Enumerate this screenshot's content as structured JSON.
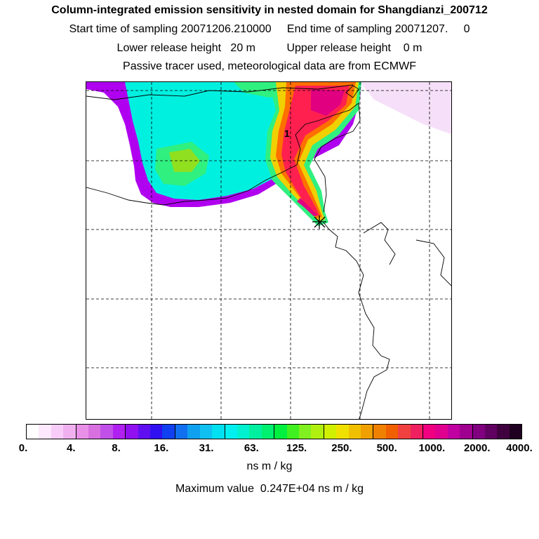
{
  "header": {
    "title": "Column-integrated emission sensitivity in nested domain for Shangdianzi_200712",
    "sampling_line": "Start time of sampling 20071206.210000     End time of sampling 20071207.     0",
    "release_line": "Lower release height   20 m          Upper release height    0 m",
    "tracer_line": "Passive tracer used, meteorological data are from ECMWF"
  },
  "map": {
    "marker_label": "1",
    "colors": {
      "purple": "#b000f0",
      "cyan": "#00f0e0",
      "green": "#30f080",
      "lime": "#90e020",
      "yellow": "#f0d000",
      "orange": "#ff7000",
      "red": "#ff2050",
      "magenta": "#e00080",
      "lightpink": "#f4d8f8"
    }
  },
  "colorbar": {
    "colors": [
      "#ffffff",
      "#fde8fd",
      "#f8ccf8",
      "#f0b0f0",
      "#e890e8",
      "#d870e0",
      "#c050e8",
      "#b020f0",
      "#9010f0",
      "#6010f0",
      "#3010f0",
      "#1040f0",
      "#1070f0",
      "#10a0f0",
      "#10c0f0",
      "#00e0f0",
      "#00f0f0",
      "#00f0d0",
      "#00f0a0",
      "#00f070",
      "#00f040",
      "#40f020",
      "#80f020",
      "#b0f010",
      "#d0f000",
      "#f0e000",
      "#f0c000",
      "#f0a000",
      "#f08000",
      "#f06000",
      "#f04040",
      "#f02060",
      "#f00080",
      "#e00090",
      "#c000a0",
      "#a00090",
      "#800080",
      "#600060",
      "#400040",
      "#200020"
    ],
    "tick_labels": [
      "0.",
      "4.",
      "8.",
      "16.",
      "31.",
      "63.",
      "125.",
      "250.",
      "500.",
      "1000.",
      "2000.",
      "4000."
    ],
    "units": "ns m / kg",
    "max_value": "Maximum value  0.247E+04 ns m / kg"
  }
}
